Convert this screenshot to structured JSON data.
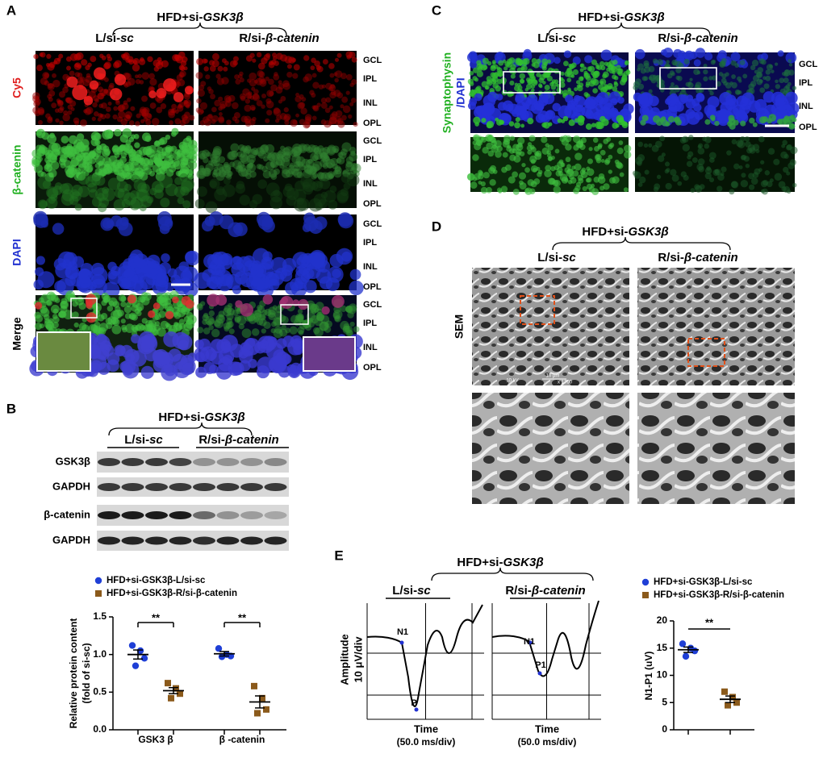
{
  "panels": {
    "A": {
      "letter": "A",
      "group_prefix": "HFD+si-",
      "group_gene": "GSK3β",
      "left_prefix": "L/si-",
      "left_italic": "sc",
      "right_prefix": "R/si-",
      "right_italic": "β-catenin",
      "rows": [
        "Cy5",
        "β-catenin",
        "DAPI",
        "Merge"
      ],
      "layers": [
        "GCL",
        "IPL",
        "INL",
        "OPL"
      ]
    },
    "B": {
      "letter": "B",
      "group_prefix": "HFD+si-",
      "group_gene": "GSK3β",
      "left_prefix": "L/si-",
      "left_italic": "sc",
      "right_prefix": "R/si-",
      "right_italic": "β-catenin",
      "blot_labels": [
        "GSK3β",
        "GAPDH",
        "β-catenin",
        "GAPDH"
      ]
    },
    "C": {
      "letter": "C",
      "group_prefix": "HFD+si-",
      "group_gene": "GSK3β",
      "left_prefix": "L/si-",
      "left_italic": "sc",
      "right_prefix": "R/si-",
      "right_italic": "β-catenin",
      "stain_top": "Synaptophysin",
      "stain_bottom": "/DAPI",
      "layers": [
        "GCL",
        "IPL",
        "INL",
        "OPL"
      ]
    },
    "D": {
      "letter": "D",
      "group_prefix": "HFD+si-",
      "group_gene": "GSK3β",
      "left_prefix": "L/si-",
      "left_italic": "sc",
      "right_prefix": "R/si-",
      "right_italic": "β-catenin",
      "method": "SEM",
      "micrograph_text": [
        "10 kV",
        "10 μm",
        "x 1700"
      ]
    },
    "E": {
      "letter": "E",
      "group_prefix": "HFD+si-",
      "group_gene": "GSK3β",
      "left_prefix": "L/si-",
      "left_italic": "sc",
      "right_prefix": "R/si-",
      "right_italic": "β-catenin",
      "y_label": "Amplitude",
      "y_scale": "10 μV/div",
      "x_label": "Time",
      "x_scale": "(50.0 ms/div)",
      "left_peaks": [
        "N1",
        "P"
      ],
      "right_peaks": [
        "N1",
        "P1"
      ]
    }
  },
  "chart_data": [
    {
      "type": "dot",
      "ylabel": "Relative protein content",
      "ylabel2": "(fold of si-sc)",
      "categories": [
        "GSK3 β",
        "β -catenin"
      ],
      "series": [
        {
          "name": "HFD+si-GSK3β-L/si-sc",
          "color": "#1f3fd6",
          "marker": "circle",
          "values": [
            [
              1.12,
              1.05,
              0.95,
              0.85
            ],
            [
              1.08,
              1.0,
              0.98,
              0.97
            ]
          ],
          "mean": [
            1.0,
            1.01
          ],
          "sem": [
            0.06,
            0.03
          ]
        },
        {
          "name": "HFD+si-GSK3β-R/si-β-catenin",
          "color": "#8b5a1b",
          "marker": "square",
          "values": [
            [
              0.62,
              0.55,
              0.48,
              0.42
            ],
            [
              0.58,
              0.42,
              0.27,
              0.22
            ]
          ],
          "mean": [
            0.52,
            0.37
          ],
          "sem": [
            0.04,
            0.08
          ]
        }
      ],
      "ylim": [
        0,
        1.5
      ],
      "yticks": [
        {
          "value": 0,
          "label": "0.0"
        },
        0.5,
        {
          "value": 1,
          "label": "1.0"
        },
        1.5
      ],
      "significance": [
        "**",
        "**"
      ]
    },
    {
      "type": "dot",
      "ylabel": "N1-P1 (uV)",
      "series": [
        {
          "name": "HFD+si-GSK3β-L/si-sc",
          "color": "#1f3fd6",
          "marker": "circle",
          "values": [
            15.8,
            15,
            14.5,
            13.5
          ],
          "mean": 14.7,
          "sem": 0.5
        },
        {
          "name": "HFD+si-GSK3β-R/si-β-catenin",
          "color": "#8b5a1b",
          "marker": "square",
          "values": [
            7,
            6,
            5,
            4.5
          ],
          "mean": 5.6,
          "sem": 0.6
        }
      ],
      "ylim": [
        0,
        20
      ],
      "yticks": [
        0,
        5,
        10,
        15,
        20
      ],
      "significance": "**"
    }
  ]
}
